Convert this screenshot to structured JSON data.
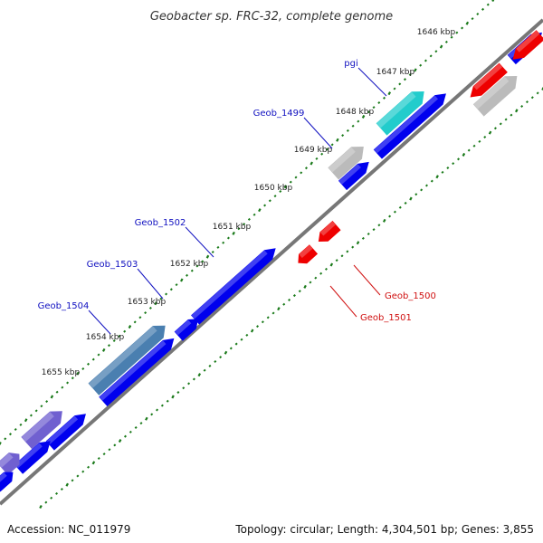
{
  "title": "Geobacter sp. FRC-32, complete genome",
  "footer": {
    "accession": "Accession: NC_011979",
    "summary": "Topology: circular; Length: 4,304,501 bp; Genes: 3,855"
  },
  "ticks": [
    "1646 kbp",
    "1647 kbp",
    "1648 kbp",
    "1649 kbp",
    "1650 kbp",
    "1651 kbp",
    "1652 kbp",
    "1653 kbp",
    "1654 kbp",
    "1655 kbp"
  ],
  "gene_labels": [
    {
      "text": "pgi",
      "color": "#1010c0",
      "side": "outer"
    },
    {
      "text": "Geob_1499",
      "color": "#1010c0",
      "side": "outer"
    },
    {
      "text": "Geob_1502",
      "color": "#1010c0",
      "side": "outer"
    },
    {
      "text": "Geob_1503",
      "color": "#1010c0",
      "side": "outer"
    },
    {
      "text": "Geob_1504",
      "color": "#1010c0",
      "side": "outer"
    },
    {
      "text": "Geob_1500",
      "color": "#d01010",
      "side": "inner"
    },
    {
      "text": "Geob_1501",
      "color": "#d01010",
      "side": "inner"
    }
  ],
  "colors": {
    "forward_cds": "#0000ee",
    "reverse_cds": "#ee0000",
    "highlight_cyan": "#22cccc",
    "highlight_gray": "#bbbbbb",
    "highlight_steel": "#4a7fb0",
    "highlight_purple": "#7060d0",
    "backbone": "#777777",
    "tick_marks": "#1a7a1a"
  }
}
